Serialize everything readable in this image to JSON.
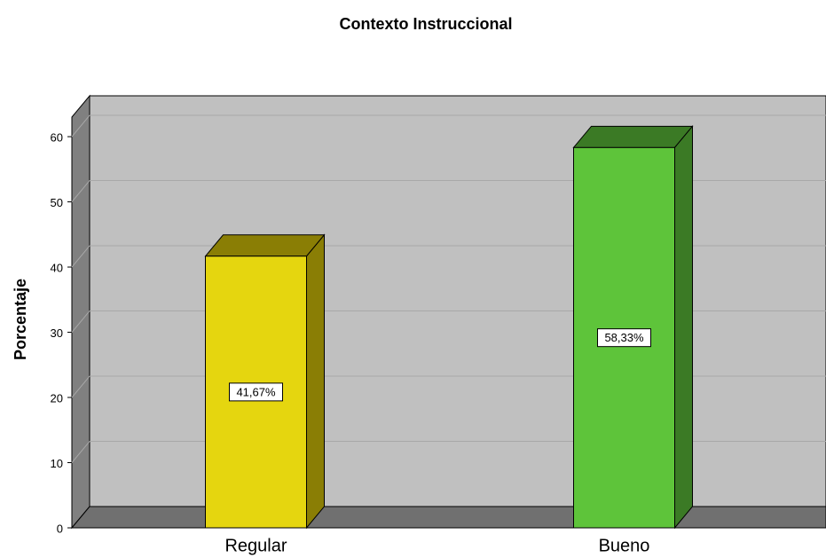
{
  "chart_data": {
    "type": "bar3d",
    "title": "Contexto Instruccional",
    "y_label": "Porcentaje",
    "categories": [
      "Regular",
      "Bueno"
    ],
    "values": [
      41.67,
      58.33
    ],
    "value_labels": [
      "41,67%",
      "58,33%"
    ],
    "colors": [
      "#e5d60f",
      "#5ec43a"
    ],
    "side_colors": [
      "#8a7e05",
      "#3b7a25"
    ],
    "ylim": [
      0,
      63
    ],
    "yticks": [
      0,
      10,
      20,
      30,
      40,
      50,
      60
    ],
    "grid": true
  }
}
